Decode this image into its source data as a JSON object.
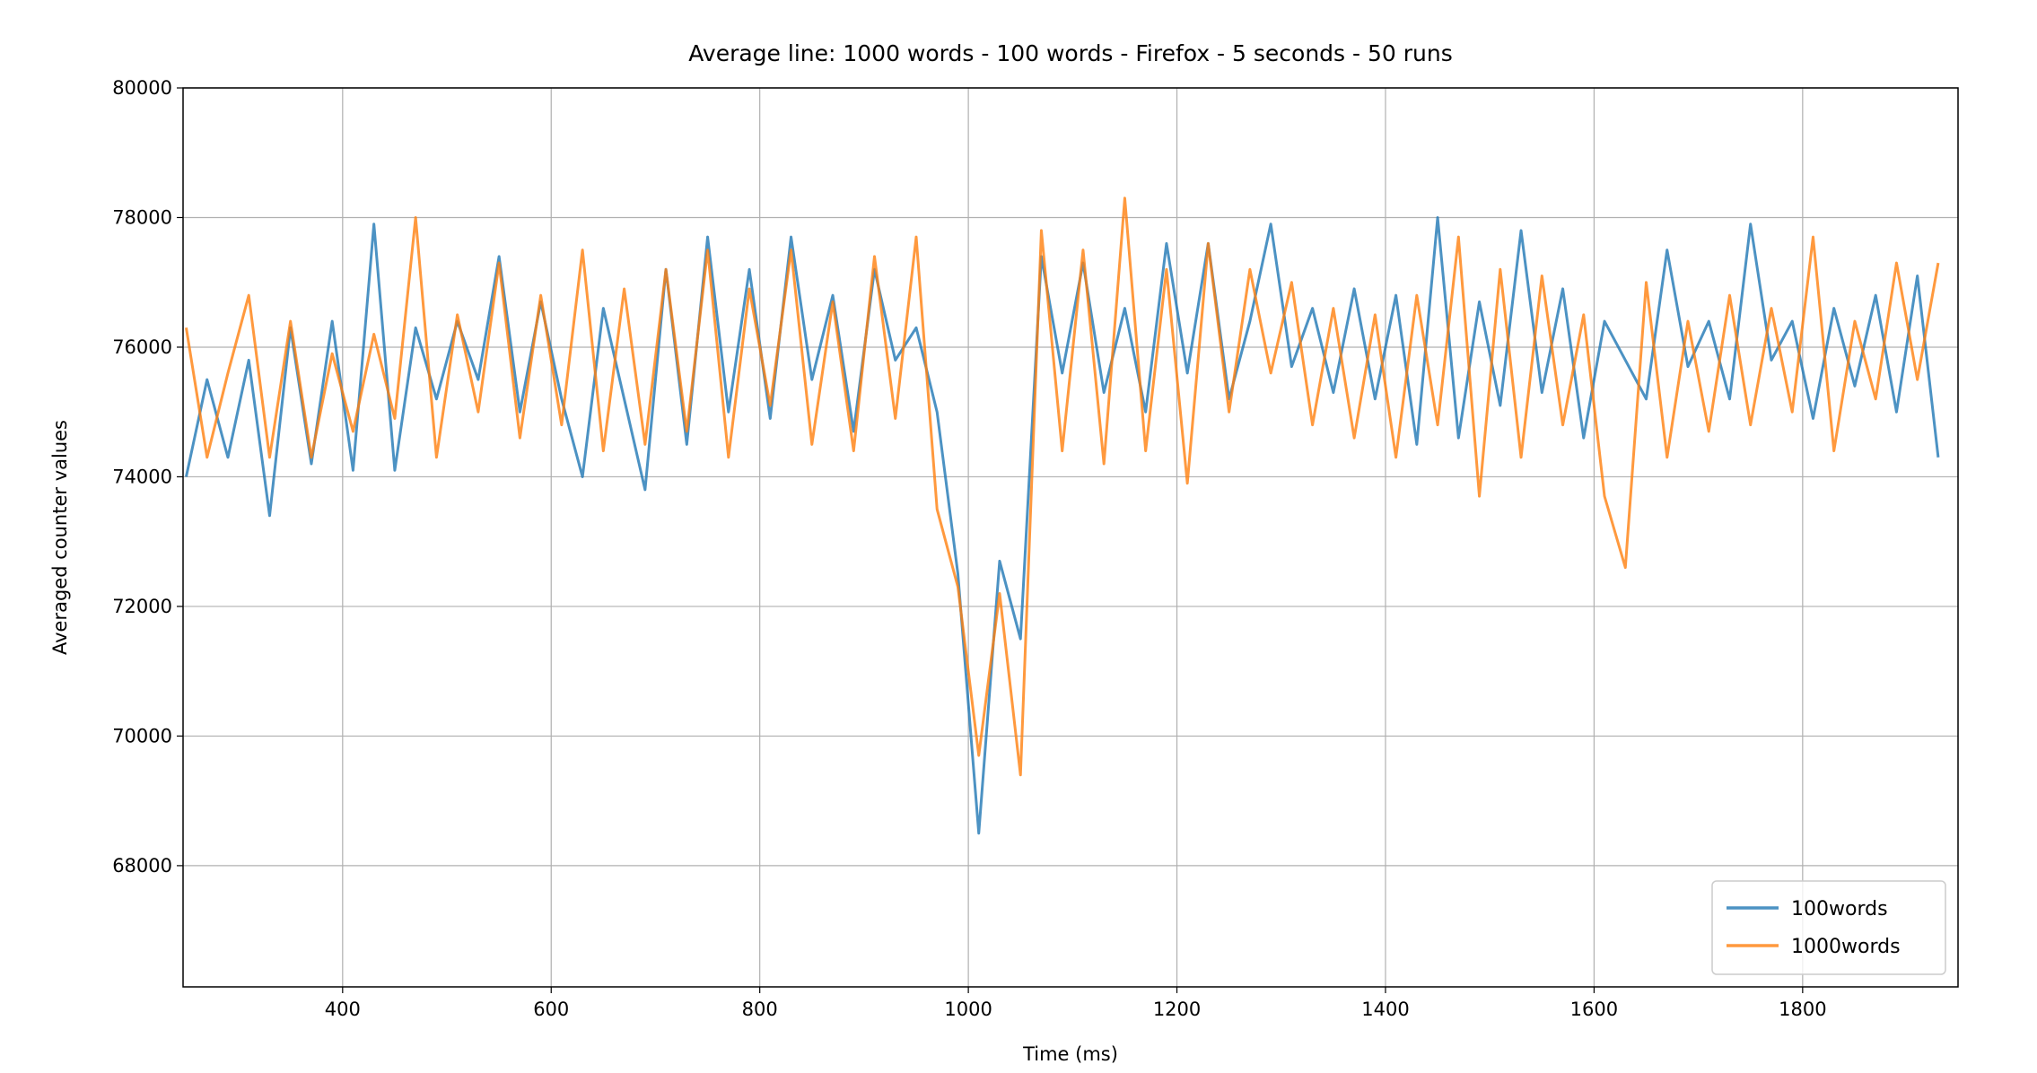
{
  "chart_data": {
    "type": "line",
    "title": "Average line: 1000 words -  100 words - Firefox - 5 seconds - 50 runs",
    "x_label": "Time (ms)",
    "y_label": "Averaged counter values",
    "x": [
      250,
      270,
      290,
      310,
      330,
      350,
      370,
      390,
      410,
      430,
      450,
      470,
      490,
      510,
      530,
      550,
      570,
      590,
      610,
      630,
      650,
      670,
      690,
      710,
      730,
      750,
      770,
      790,
      810,
      830,
      850,
      870,
      890,
      910,
      930,
      950,
      970,
      990,
      1010,
      1030,
      1050,
      1070,
      1090,
      1110,
      1130,
      1150,
      1170,
      1190,
      1210,
      1230,
      1250,
      1270,
      1290,
      1310,
      1330,
      1350,
      1370,
      1390,
      1410,
      1430,
      1450,
      1470,
      1490,
      1510,
      1530,
      1550,
      1570,
      1590,
      1610,
      1630,
      1650,
      1670,
      1690,
      1710,
      1730,
      1750,
      1770,
      1790,
      1810,
      1830,
      1850,
      1870,
      1890,
      1910,
      1930
    ],
    "series": [
      {
        "name": "100words",
        "color": "#1f77b4",
        "values": [
          74000,
          75500,
          74300,
          75800,
          73400,
          76300,
          74200,
          76400,
          74100,
          77900,
          74100,
          76300,
          75200,
          76400,
          75500,
          77400,
          75000,
          76700,
          75200,
          74000,
          76600,
          75200,
          73800,
          77200,
          74500,
          77700,
          75000,
          77200,
          74900,
          77700,
          75500,
          76800,
          74700,
          77200,
          75800,
          76300,
          75000,
          72500,
          68500,
          72700,
          71500,
          77400,
          75600,
          77300,
          75300,
          76600,
          75000,
          77600,
          75600,
          77600,
          75200,
          76400,
          77900,
          75700,
          76600,
          75300,
          76900,
          75200,
          76800,
          74500,
          78000,
          74600,
          76700,
          75100,
          77800,
          75300,
          76900,
          74600,
          76400,
          75800,
          75200,
          77500,
          75700,
          76400,
          75200,
          77900,
          75800,
          76400,
          74900,
          76600,
          75400,
          76800,
          75000,
          77100,
          74300
        ]
      },
      {
        "name": "1000words",
        "color": "#ff7f0e",
        "values": [
          76300,
          74300,
          75600,
          76800,
          74300,
          76400,
          74300,
          75900,
          74700,
          76200,
          74900,
          78000,
          74300,
          76500,
          75000,
          77300,
          74600,
          76800,
          74800,
          77500,
          74400,
          76900,
          74500,
          77200,
          74700,
          77500,
          74300,
          76900,
          75100,
          77500,
          74500,
          76700,
          74400,
          77400,
          74900,
          77700,
          73500,
          72300,
          69700,
          72200,
          69400,
          77800,
          74400,
          77500,
          74200,
          78300,
          74400,
          77200,
          73900,
          77600,
          75000,
          77200,
          75600,
          77000,
          74800,
          76600,
          74600,
          76500,
          74300,
          76800,
          74800,
          77700,
          73700,
          77200,
          74300,
          77100,
          74800,
          76500,
          73700,
          72600,
          77000,
          74300,
          76400,
          74700,
          76800,
          74800,
          76600,
          75000,
          77700,
          74400,
          76400,
          75200,
          77300,
          75500,
          77300
        ]
      }
    ],
    "xlim": [
      247,
      1949
    ],
    "ylim": [
      66130,
      80000
    ],
    "xticks": [
      400,
      600,
      800,
      1000,
      1200,
      1400,
      1600,
      1800
    ],
    "yticks": [
      68000,
      70000,
      72000,
      74000,
      76000,
      78000,
      80000
    ],
    "grid": true,
    "legend": "lower right"
  }
}
